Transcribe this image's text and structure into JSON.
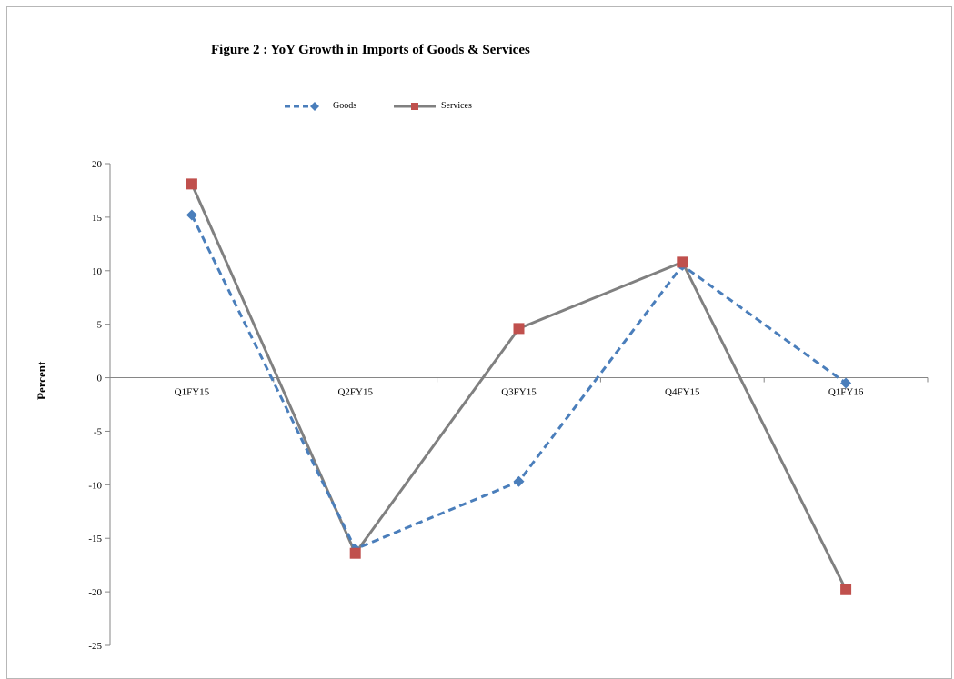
{
  "chart_data": {
    "type": "line",
    "title": "Figure 2 : YoY Growth in Imports of Goods & Services",
    "xlabel": "",
    "ylabel": "Percent",
    "ylim": [
      -25,
      20
    ],
    "yticks": [
      20,
      15,
      10,
      5,
      0,
      -5,
      -10,
      -15,
      -20,
      -25
    ],
    "categories": [
      "Q1FY15",
      "Q2FY15",
      "Q3FY15",
      "Q4FY15",
      "Q1FY16"
    ],
    "series": [
      {
        "name": "Goods",
        "values": [
          15.2,
          -16.0,
          -9.7,
          10.5,
          -0.5
        ],
        "color": "#4a7ebb",
        "style": "dashed",
        "marker": "diamond"
      },
      {
        "name": "Services",
        "values": [
          18.1,
          -16.4,
          4.6,
          10.8,
          -19.8
        ],
        "color": "#808080",
        "style": "solid",
        "marker": "square",
        "marker_color": "#c0504d"
      }
    ],
    "legend_position": "top-center",
    "grid": false
  }
}
